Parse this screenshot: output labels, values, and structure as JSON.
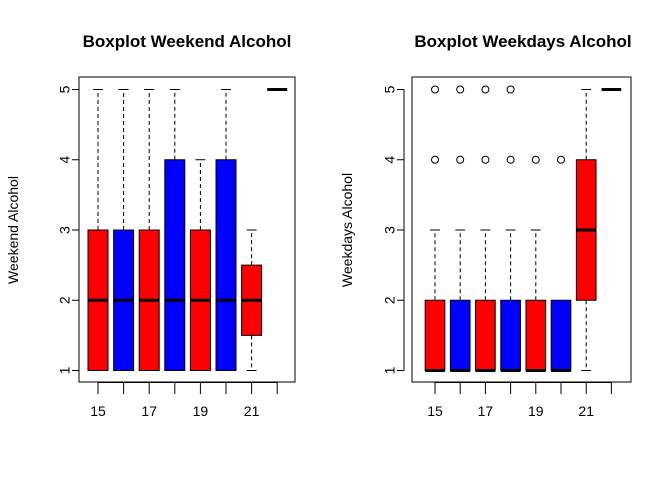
{
  "colors": {
    "red": "#ff0000",
    "blue": "#0000ff",
    "black": "#000000",
    "background": "#ffffff"
  },
  "chart_data": [
    {
      "type": "boxplot",
      "title": "Boxplot Weekend Alcohol",
      "xlabel": "",
      "ylabel": "Weekend Alcohol",
      "ylim": [
        1,
        5
      ],
      "y_ticks": [
        "1",
        "2",
        "3",
        "4",
        "5"
      ],
      "x_tick_labels": [
        "15",
        "17",
        "19",
        "21"
      ],
      "categories": [
        "15",
        "16",
        "17",
        "18",
        "19",
        "20",
        "21",
        "22"
      ],
      "box_colors": [
        "red",
        "blue",
        "red",
        "blue",
        "red",
        "blue",
        "red",
        "blue"
      ],
      "boxes": [
        {
          "x": "15",
          "whisker_low": 1,
          "q1": 1,
          "median": 2,
          "q3": 3,
          "whisker_high": 5,
          "outliers": []
        },
        {
          "x": "16",
          "whisker_low": 1,
          "q1": 1,
          "median": 2,
          "q3": 3,
          "whisker_high": 5,
          "outliers": []
        },
        {
          "x": "17",
          "whisker_low": 1,
          "q1": 1,
          "median": 2,
          "q3": 3,
          "whisker_high": 5,
          "outliers": []
        },
        {
          "x": "18",
          "whisker_low": 1,
          "q1": 1,
          "median": 2,
          "q3": 4,
          "whisker_high": 5,
          "outliers": []
        },
        {
          "x": "19",
          "whisker_low": 1,
          "q1": 1,
          "median": 2,
          "q3": 3,
          "whisker_high": 4,
          "outliers": []
        },
        {
          "x": "20",
          "whisker_low": 1,
          "q1": 1,
          "median": 2,
          "q3": 4,
          "whisker_high": 5,
          "outliers": []
        },
        {
          "x": "21",
          "whisker_low": 1,
          "q1": 1.5,
          "median": 2,
          "q3": 2.5,
          "whisker_high": 3,
          "outliers": []
        },
        {
          "x": "22",
          "whisker_low": 5,
          "q1": 5,
          "median": 5,
          "q3": 5,
          "whisker_high": 5,
          "outliers": []
        }
      ]
    },
    {
      "type": "boxplot",
      "title": "Boxplot Weekdays Alcohol",
      "xlabel": "",
      "ylabel": "Weekdays Alcohol",
      "ylim": [
        1,
        5
      ],
      "y_ticks": [
        "1",
        "2",
        "3",
        "4",
        "5"
      ],
      "x_tick_labels": [
        "15",
        "17",
        "19",
        "21"
      ],
      "categories": [
        "15",
        "16",
        "17",
        "18",
        "19",
        "20",
        "21",
        "22"
      ],
      "box_colors": [
        "red",
        "blue",
        "red",
        "blue",
        "red",
        "blue",
        "red",
        "blue"
      ],
      "boxes": [
        {
          "x": "15",
          "whisker_low": 1,
          "q1": 1,
          "median": 1,
          "q3": 2,
          "whisker_high": 3,
          "outliers": [
            4,
            5
          ]
        },
        {
          "x": "16",
          "whisker_low": 1,
          "q1": 1,
          "median": 1,
          "q3": 2,
          "whisker_high": 3,
          "outliers": [
            4,
            5
          ]
        },
        {
          "x": "17",
          "whisker_low": 1,
          "q1": 1,
          "median": 1,
          "q3": 2,
          "whisker_high": 3,
          "outliers": [
            4,
            5
          ]
        },
        {
          "x": "18",
          "whisker_low": 1,
          "q1": 1,
          "median": 1,
          "q3": 2,
          "whisker_high": 3,
          "outliers": [
            4,
            5
          ]
        },
        {
          "x": "19",
          "whisker_low": 1,
          "q1": 1,
          "median": 1,
          "q3": 2,
          "whisker_high": 3,
          "outliers": [
            4
          ]
        },
        {
          "x": "20",
          "whisker_low": 1,
          "q1": 1,
          "median": 1,
          "q3": 2,
          "whisker_high": 2,
          "outliers": [
            4
          ]
        },
        {
          "x": "21",
          "whisker_low": 1,
          "q1": 2,
          "median": 3,
          "q3": 4,
          "whisker_high": 5,
          "outliers": []
        },
        {
          "x": "22",
          "whisker_low": 5,
          "q1": 5,
          "median": 5,
          "q3": 5,
          "whisker_high": 5,
          "outliers": []
        }
      ]
    }
  ]
}
